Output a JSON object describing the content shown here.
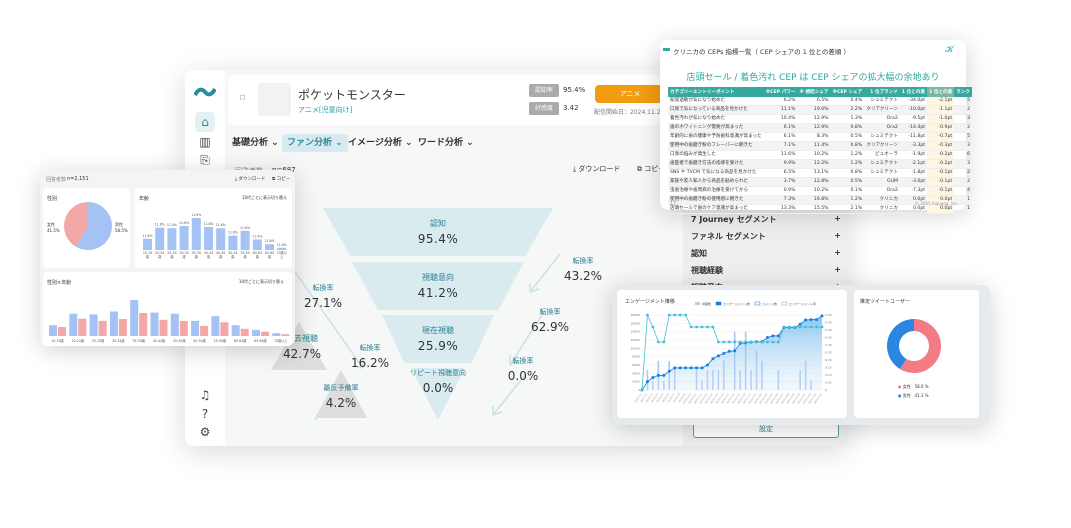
{
  "main": {
    "title": "ポケットモンスター",
    "category": "アニメ[児童向け]",
    "metrics": [
      {
        "label": "認知率",
        "value": "95.4%"
      },
      {
        "label": "好感度",
        "value": "3.42"
      }
    ],
    "genre_button": "アニメ",
    "release_date": "配信開始日：2024.11.2",
    "tabs": [
      "基礎分析",
      "ファン分析",
      "イメージ分析",
      "ワード分析"
    ],
    "active_tab": 1,
    "respondents_label": "回答者数",
    "respondents": "n=687",
    "download": "ダウンロード",
    "copy": "コピー",
    "funnel": [
      {
        "label": "認知",
        "value": "95.4%"
      },
      {
        "label": "視聴意向",
        "value": "41.2%"
      },
      {
        "label": "現在視聴",
        "value": "25.9%"
      },
      {
        "label": "リピート視聴意向",
        "value": "0.0%"
      }
    ],
    "rates": [
      {
        "label": "転換率",
        "value": "43.2%"
      },
      {
        "label": "転換率",
        "value": "62.9%"
      },
      {
        "label": "転換率",
        "value": "0.0%"
      },
      {
        "label": "転換率",
        "value": "27.1%"
      },
      {
        "label": "転換率",
        "value": "16.2%"
      }
    ],
    "side_segments": [
      {
        "label": "過去視聴",
        "value": "42.7%"
      },
      {
        "label": "離反予備軍",
        "value": "4.2%"
      }
    ],
    "accordion": [
      "7 Journey セグメント",
      "ファネル セグメント",
      "認知",
      "視聴経験",
      "視聴意向"
    ],
    "settings_button": "設定"
  },
  "cep": {
    "title": "クリニカの CEPs 指標一覧（ CEP シェアの 1 位との差順 ）",
    "headline": "店頭セール / 着色汚れ CEP は CEP シェアの拡大幅の余地あり",
    "columns": [
      "カテゴリーエントリーポイント",
      "※CEP パワー",
      "※ 想起シェア",
      "※CEP シェア",
      "1 位ブランド",
      "1 位との差",
      "1 位との差",
      "ランク"
    ],
    "rows": [
      [
        "知覚過敏が気になり始めた",
        "6.2%",
        "6.5%",
        "0.4%",
        "シュミテクト",
        "-34.0pt",
        "-2.1pt",
        "5"
      ],
      [
        "口臭で気になっている商品を見かけた",
        "11.1%",
        "19.6%",
        "2.2%",
        "クリアクリーン",
        "-10.0pt",
        "-1.1pt",
        "2"
      ],
      [
        "着色汚れが気になり始めた",
        "10.4%",
        "12.9%",
        "1.3%",
        "Ora2",
        "-9.5pt",
        "-1.0pt",
        "3"
      ],
      [
        "歯のホワイトニング需要が高まった",
        "6.1%",
        "12.9%",
        "0.8%",
        "Ora2",
        "-14.4pt",
        "-0.9pt",
        "2"
      ],
      [
        "年齢的に歯の健康や予防歯科意識が高まった",
        "6.1%",
        "8.3%",
        "0.5%",
        "シュミテクト",
        "-11.8pt",
        "-0.7pt",
        "5"
      ],
      [
        "使用中の歯磨き粉のフレーバーに飽きた",
        "7.1%",
        "11.4%",
        "0.8%",
        "クリアクリーン",
        "-3.3pt",
        "-0.3pt",
        "3"
      ],
      [
        "口臭の悩みが発生した",
        "11.6%",
        "10.2%",
        "1.2%",
        "ピュオーラ",
        "-1.9pt",
        "-0.2pt",
        "6"
      ],
      [
        "歯医者で歯磨き方法の指導を受けた",
        "9.9%",
        "12.2%",
        "1.2%",
        "シュミテクト",
        "-2.1pt",
        "-0.2pt",
        "3"
      ],
      [
        "SNS や TVCM で気になる商品を見かけた",
        "6.5%",
        "13.1%",
        "0.8%",
        "シュミテクト",
        "-1.8pt",
        "-0.1pt",
        "2"
      ],
      [
        "家族や友人知人から商品を勧められた",
        "3.7%",
        "12.8%",
        "0.5%",
        "GUM",
        "-3.0pt",
        "-0.1pt",
        "2"
      ],
      [
        "虫歯治療や歯周病の治療を受けてから",
        "0.9%",
        "10.2%",
        "0.1%",
        "Ora2",
        "-7.3pt",
        "-0.1pt",
        "4"
      ],
      [
        "使用中の歯磨き粉の使用感に飽きた",
        "7.3%",
        "16.8%",
        "1.2%",
        "クリニカ",
        "0.0pt",
        "0.0pt",
        "1"
      ],
      [
        "店頭セールで歯のケア意識が高まった",
        "13.3%",
        "15.5%",
        "2.1%",
        "クリニカ",
        "0.0pt",
        "0.0pt",
        "1"
      ]
    ],
    "page": "17",
    "copyright": "© 2025 Aiqueeq, Inc."
  },
  "demo": {
    "respondents_label": "回答者数",
    "respondents": "n=2,151",
    "download": "ダウンロード",
    "copy": "コピー",
    "gender_title": "性別",
    "female_label": "女性",
    "female_value": "41.5%",
    "male_label": "男性",
    "male_value": "58.5%",
    "age_title": "年齢",
    "toggle": "10代ごとに表示切り替え",
    "cross_title": "性別×年齢",
    "age_categories": [
      "15-19歳",
      "20-24歳",
      "25-29歳",
      "30-34歳",
      "35-39歳",
      "40-44歳",
      "45-49歳",
      "50-54歳",
      "55-59歳",
      "60-64歳",
      "65-69歳",
      "70歳以上"
    ],
    "age_labels": [
      "11.6%",
      "11.6%",
      "11.4%",
      "11.6%",
      "11.6%",
      "11.6%",
      "11.6%",
      "11.6%",
      "11.6%",
      "11.4%",
      "11.6%",
      "11.6%"
    ],
    "age_levels": [
      0.35,
      0.7,
      0.68,
      0.75,
      1.0,
      0.72,
      0.68,
      0.45,
      0.6,
      0.33,
      0.18,
      0.07
    ],
    "cross_male": [
      0.3,
      0.62,
      0.6,
      0.68,
      1.0,
      0.65,
      0.62,
      0.42,
      0.55,
      0.3,
      0.17,
      0.08
    ],
    "cross_female": [
      0.25,
      0.48,
      0.42,
      0.47,
      0.64,
      0.45,
      0.42,
      0.28,
      0.38,
      0.2,
      0.12,
      0.05
    ],
    "colors": {
      "male": "#a4c2f4",
      "female": "#f4a7a7"
    }
  },
  "engagement": {
    "title": "エンゲージメント推移",
    "legend": [
      "視聴数",
      "エンゲージメント数",
      "コメント数",
      "エンゲージメント率"
    ],
    "y_left": [
      "0",
      "2000",
      "4000",
      "6000",
      "8000",
      "10000",
      "12000",
      "14000",
      "16000",
      "18000"
    ],
    "y_right": [
      "0",
      "0.05",
      "0.10",
      "0.15",
      "0.20",
      "0.25",
      "0.30",
      "0.35",
      "0.40",
      "0.45",
      "0.50"
    ],
    "engagements": [
      0,
      2000,
      3000,
      3500,
      3500,
      4500,
      5300,
      5300,
      5300,
      5300,
      5300,
      5300,
      6000,
      7500,
      8200,
      8800,
      9300,
      9400,
      11200,
      11300,
      11500,
      11600,
      11600,
      12600,
      13000,
      13000,
      15000,
      15000,
      15000,
      15800,
      16800,
      16900,
      16900,
      17800
    ],
    "rate": [
      0,
      0.5,
      0.42,
      0.32,
      0.32,
      0.5,
      0.5,
      0.5,
      0.5,
      0.42,
      0.42,
      0.42,
      0.42,
      0.42,
      0.32,
      0.32,
      0.32,
      0.32,
      0.32,
      0.32,
      0.32,
      0.32,
      0.32,
      0.32,
      0.32,
      0.32,
      0.42,
      0.42,
      0.42,
      0.42,
      0.42,
      0.42,
      0.42,
      0.42
    ],
    "views": [
      0,
      4800,
      2300,
      7000,
      2200,
      7000,
      5400,
      0,
      0,
      0,
      4800,
      2300,
      4800,
      4800,
      4800,
      7100,
      0,
      14000,
      4800,
      14000,
      4800,
      9400,
      7000,
      0,
      0,
      4800,
      0,
      0,
      0,
      4800,
      7000,
      2300,
      0,
      0
    ],
    "color_line": "#1a7fe0",
    "color_rate": "#3cc1d4"
  },
  "donut": {
    "title": "推定ツイートユーザー",
    "female_label": "女性",
    "female_value": "58.6 %",
    "male_label": "男性",
    "male_value": "41.3 %",
    "female": 58.6,
    "male": 41.3,
    "colors": {
      "female": "#f47a84",
      "male": "#2a86e0"
    }
  }
}
